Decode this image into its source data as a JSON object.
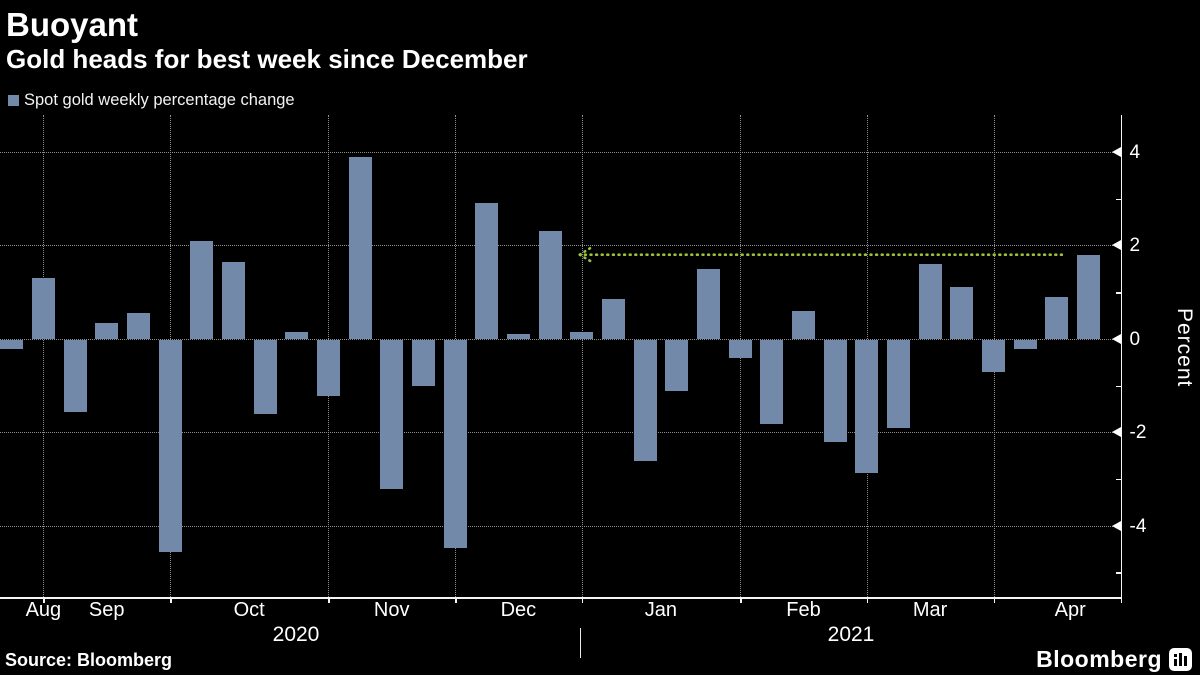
{
  "header": {
    "title": "Buoyant",
    "subtitle": "Gold heads for best week since December"
  },
  "legend": {
    "label": "Spot gold weekly percentage change",
    "swatch_color": "#7289a9"
  },
  "chart_data": {
    "type": "bar",
    "title": "Buoyant",
    "subtitle": "Gold heads for best week since December",
    "series_name": "Spot gold weekly percentage change",
    "unit": "percent",
    "values": [
      -0.2,
      1.3,
      -1.55,
      0.35,
      0.55,
      -4.55,
      2.1,
      1.65,
      -1.6,
      0.15,
      -1.2,
      3.9,
      -3.2,
      -1.0,
      -4.45,
      2.9,
      0.1,
      2.3,
      0.15,
      0.85,
      -2.6,
      -1.1,
      1.5,
      -0.4,
      -1.8,
      0.6,
      -2.2,
      -2.85,
      -1.9,
      1.6,
      1.1,
      -0.7,
      -0.2,
      0.9,
      1.8
    ],
    "bar_color": "#7289a9",
    "x_axis": {
      "month_labels": [
        "Aug",
        "Sep",
        "Oct",
        "Nov",
        "Dec",
        "Jan",
        "Feb",
        "Mar",
        "Apr"
      ],
      "month_boundary_weeks": [
        1,
        5,
        10,
        14,
        18,
        23,
        27,
        31
      ],
      "year_labels": [
        "2020",
        "2021"
      ]
    },
    "y_axis": {
      "label": "Percent",
      "major_ticks": [
        4,
        2,
        0,
        -2,
        -4
      ],
      "minor_ticks": [
        3,
        1,
        -1,
        -3,
        -5
      ],
      "range": [
        -5.5,
        4.8
      ],
      "grid": "dotted"
    },
    "annotation": {
      "type": "dotted-arrow-line",
      "value": 1.8,
      "color": "#9cc13c",
      "direction": "left",
      "meaning": "level of latest weekly gain traced back to December"
    }
  },
  "footer": {
    "source": "Source: Bloomberg",
    "brand": "Bloomberg"
  },
  "colors": {
    "background": "#000000",
    "text": "#ffffff",
    "grid": "#8e8e8e",
    "axis": "#f5f5f5",
    "bar": "#7289a9",
    "annotation": "#9cc13c"
  }
}
